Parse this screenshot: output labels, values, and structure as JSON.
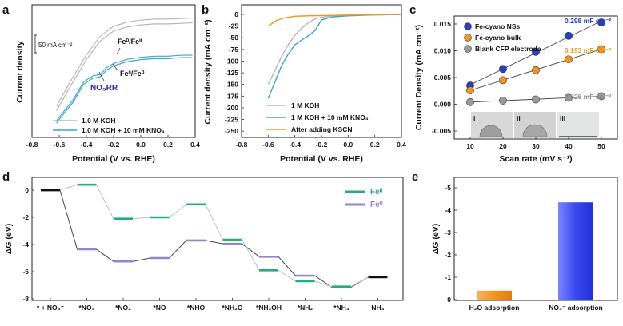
{
  "panels": {
    "a": {
      "letter": "a",
      "ylabel": "Current density",
      "xlabel": "Potential (V vs. RHE)",
      "xticks": [
        "-0.8",
        "-0.6",
        "-0.4",
        "-0.2",
        "0.0",
        "0.2",
        "0.4"
      ],
      "scalebar": "50 mA cm⁻²",
      "ann_fe32": "Fe⁰/Feᴵᴵ",
      "ann_fe23": "Feᴵᴵ/Fe⁰",
      "ann_no3rr": "NO₃RR",
      "legend": [
        "1.0 M KOH",
        "1.0 M KOH + 10 mM KNO₃"
      ]
    },
    "b": {
      "letter": "b",
      "ylabel": "Current density (mA cm⁻²)",
      "xlabel": "Potential (V vs. RHE)",
      "xticks": [
        "-0.8",
        "-0.6",
        "-0.4",
        "-0.2",
        "0.0",
        "0.2",
        "0.4"
      ],
      "yticks": [
        "0",
        "-25",
        "-50",
        "-75",
        "-100",
        "-125",
        "-150",
        "-175",
        "-200",
        "-225",
        "-250"
      ],
      "legend": [
        "1 M KOH",
        "1 M KOH + 10 mM KNO₃",
        "After adding KSCN"
      ]
    },
    "c": {
      "letter": "c",
      "ylabel": "Current Density (mA cm⁻²)",
      "xlabel": "Scan rate (mV s⁻¹)",
      "xticks": [
        "10",
        "20",
        "30",
        "40",
        "50"
      ],
      "yticks": [
        "0.015",
        "0.010",
        "0.005",
        "0.000",
        "-0.005"
      ],
      "legend": [
        "Fe-cyano NSs",
        "Fe-cyano bulk",
        "Blank CFP electrode"
      ],
      "slopes": [
        "0.298 mF cm⁻²",
        "0.193 mF cm⁻²",
        "0.026 mF cm⁻²"
      ],
      "insets": [
        "i",
        "ii",
        "iii"
      ]
    },
    "d": {
      "letter": "d",
      "ylabel": "ΔG (eV)",
      "yticks": [
        "0",
        "-2",
        "-4",
        "-6",
        "-8"
      ],
      "xcats": [
        "* + NO₃⁻",
        "*NO₃",
        "*NO₂",
        "*NO",
        "*NHO",
        "*NH₂O",
        "*NH₂OH",
        "*NH₂",
        "*NH₃",
        "NH₃"
      ],
      "legend": [
        "Feᴵᴵ",
        "Fe⁰"
      ]
    },
    "e": {
      "letter": "e",
      "ylabel": "ΔG (eV)",
      "yticks": [
        "-5",
        "-4",
        "-3",
        "-2",
        "-1",
        "0"
      ],
      "xcats": [
        "H₂O adsorption",
        "NO₃⁻ adsorption"
      ]
    }
  },
  "chart_data": [
    {
      "id": "a",
      "type": "line",
      "xlim": [
        -0.8,
        0.4
      ],
      "series": [
        {
          "name": "1.0 M KOH",
          "color": "#b5b5b5",
          "x": [
            -0.62,
            -0.5,
            -0.4,
            -0.3,
            -0.2,
            -0.1,
            0.0,
            0.1,
            0.2,
            0.3,
            0.38
          ],
          "y": [
            0.12,
            0.4,
            0.62,
            0.8,
            0.9,
            0.94,
            0.96,
            0.97,
            0.97,
            0.975,
            0.98
          ]
        },
        {
          "name": "1.0 M KOH + 10 mM KNO₃",
          "color": "#3aa6cc",
          "x": [
            -0.62,
            -0.5,
            -0.42,
            -0.35,
            -0.3,
            -0.25,
            -0.2,
            -0.15,
            -0.1,
            0.0,
            0.1,
            0.2,
            0.3,
            0.38
          ],
          "y": [
            0.0,
            0.2,
            0.38,
            0.44,
            0.45,
            0.52,
            0.56,
            0.58,
            0.6,
            0.62,
            0.63,
            0.63,
            0.64,
            0.64
          ]
        }
      ]
    },
    {
      "id": "b",
      "type": "line",
      "xlim": [
        -0.8,
        0.4
      ],
      "ylim": [
        -250,
        0
      ],
      "series": [
        {
          "name": "1 M KOH",
          "color": "#b5b5b5",
          "x": [
            -0.6,
            -0.55,
            -0.5,
            -0.45,
            -0.4,
            -0.35,
            -0.3,
            -0.25,
            -0.2,
            -0.1,
            0.0,
            0.2,
            0.4
          ],
          "y": [
            -150,
            -120,
            -90,
            -65,
            -45,
            -30,
            -18,
            -10,
            -6,
            -3,
            -2,
            -1,
            0
          ]
        },
        {
          "name": "1 M KOH + 10 mM KNO₃",
          "color": "#3aa6cc",
          "x": [
            -0.6,
            -0.55,
            -0.5,
            -0.45,
            -0.4,
            -0.35,
            -0.3,
            -0.25,
            -0.2,
            -0.15,
            -0.1,
            0.0,
            0.2,
            0.4
          ],
          "y": [
            -180,
            -145,
            -110,
            -85,
            -65,
            -55,
            -46,
            -35,
            -12,
            -8,
            -5,
            -3,
            -1,
            0
          ]
        },
        {
          "name": "After adding KSCN",
          "color": "#f0961e",
          "x": [
            -0.6,
            -0.55,
            -0.5,
            -0.45,
            -0.4,
            -0.3,
            -0.2,
            0.0,
            0.2,
            0.4
          ],
          "y": [
            -25,
            -15,
            -9,
            -6,
            -4,
            -3,
            -2.5,
            -1.5,
            -1,
            0
          ]
        }
      ]
    },
    {
      "id": "c",
      "type": "scatter",
      "x": [
        10,
        20,
        30,
        40,
        50
      ],
      "ylim": [
        -0.005,
        0.017
      ],
      "series": [
        {
          "name": "Fe-cyano NSs",
          "color": "#2a3ccc",
          "values": [
            0.0035,
            0.0066,
            0.0098,
            0.0128,
            0.0153
          ]
        },
        {
          "name": "Fe-cyano bulk",
          "color": "#f0961e",
          "values": [
            0.0026,
            0.0045,
            0.0064,
            0.0084,
            0.0103
          ]
        },
        {
          "name": "Blank CFP electrode",
          "color": "#9a9a9a",
          "values": [
            0.0004,
            0.0007,
            0.0009,
            0.0012,
            0.0015
          ]
        }
      ]
    },
    {
      "id": "d",
      "type": "line",
      "ylim": [
        -8,
        0.5
      ],
      "categories": [
        "* + NO₃⁻",
        "*NO₃",
        "*NO₂",
        "*NO",
        "*NHO",
        "*NH₂O",
        "*NH₂OH",
        "*NH₂",
        "*NH₃",
        "NH₃"
      ],
      "series": [
        {
          "name": "Feᴵᴵ",
          "color": "#22b07a",
          "values": [
            0,
            0.4,
            -2.1,
            -2.0,
            -1.05,
            -3.65,
            -5.9,
            -6.7,
            -7.1,
            -6.4
          ]
        },
        {
          "name": "Fe⁰",
          "color": "#8f86d8",
          "values": [
            0,
            -4.35,
            -5.25,
            -5.0,
            -3.7,
            -3.95,
            -4.9,
            -6.3,
            -7.15,
            -6.4
          ]
        }
      ]
    },
    {
      "id": "e",
      "type": "bar",
      "categories": [
        "H₂O adsorption",
        "NO₃⁻ adsorption"
      ],
      "values": [
        -0.4,
        -4.35
      ],
      "colors": [
        "#f0961e",
        "#3a48f0"
      ],
      "ylim": [
        -5,
        0
      ]
    }
  ]
}
